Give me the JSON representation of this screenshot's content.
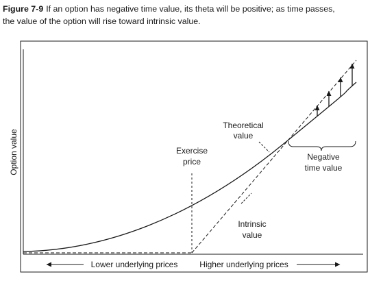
{
  "caption": {
    "figure_label": "Figure 7-9",
    "line1": "If an option has negative time value, its theta will be positive; as time passes,",
    "line2": "the value of the option will rise toward intrinsic value."
  },
  "diagram": {
    "y_axis_label": "Option value",
    "labels": {
      "theoretical_line1": "Theoretical",
      "theoretical_line2": "value",
      "exercise_line1": "Exercise",
      "exercise_line2": "price",
      "negative_line1": "Negative",
      "negative_line2": "time value",
      "intrinsic_line1": "Intrinsic",
      "intrinsic_line2": "value"
    },
    "x_axis": {
      "left_label": "Lower underlying prices",
      "right_label": "Higher underlying prices"
    }
  }
}
